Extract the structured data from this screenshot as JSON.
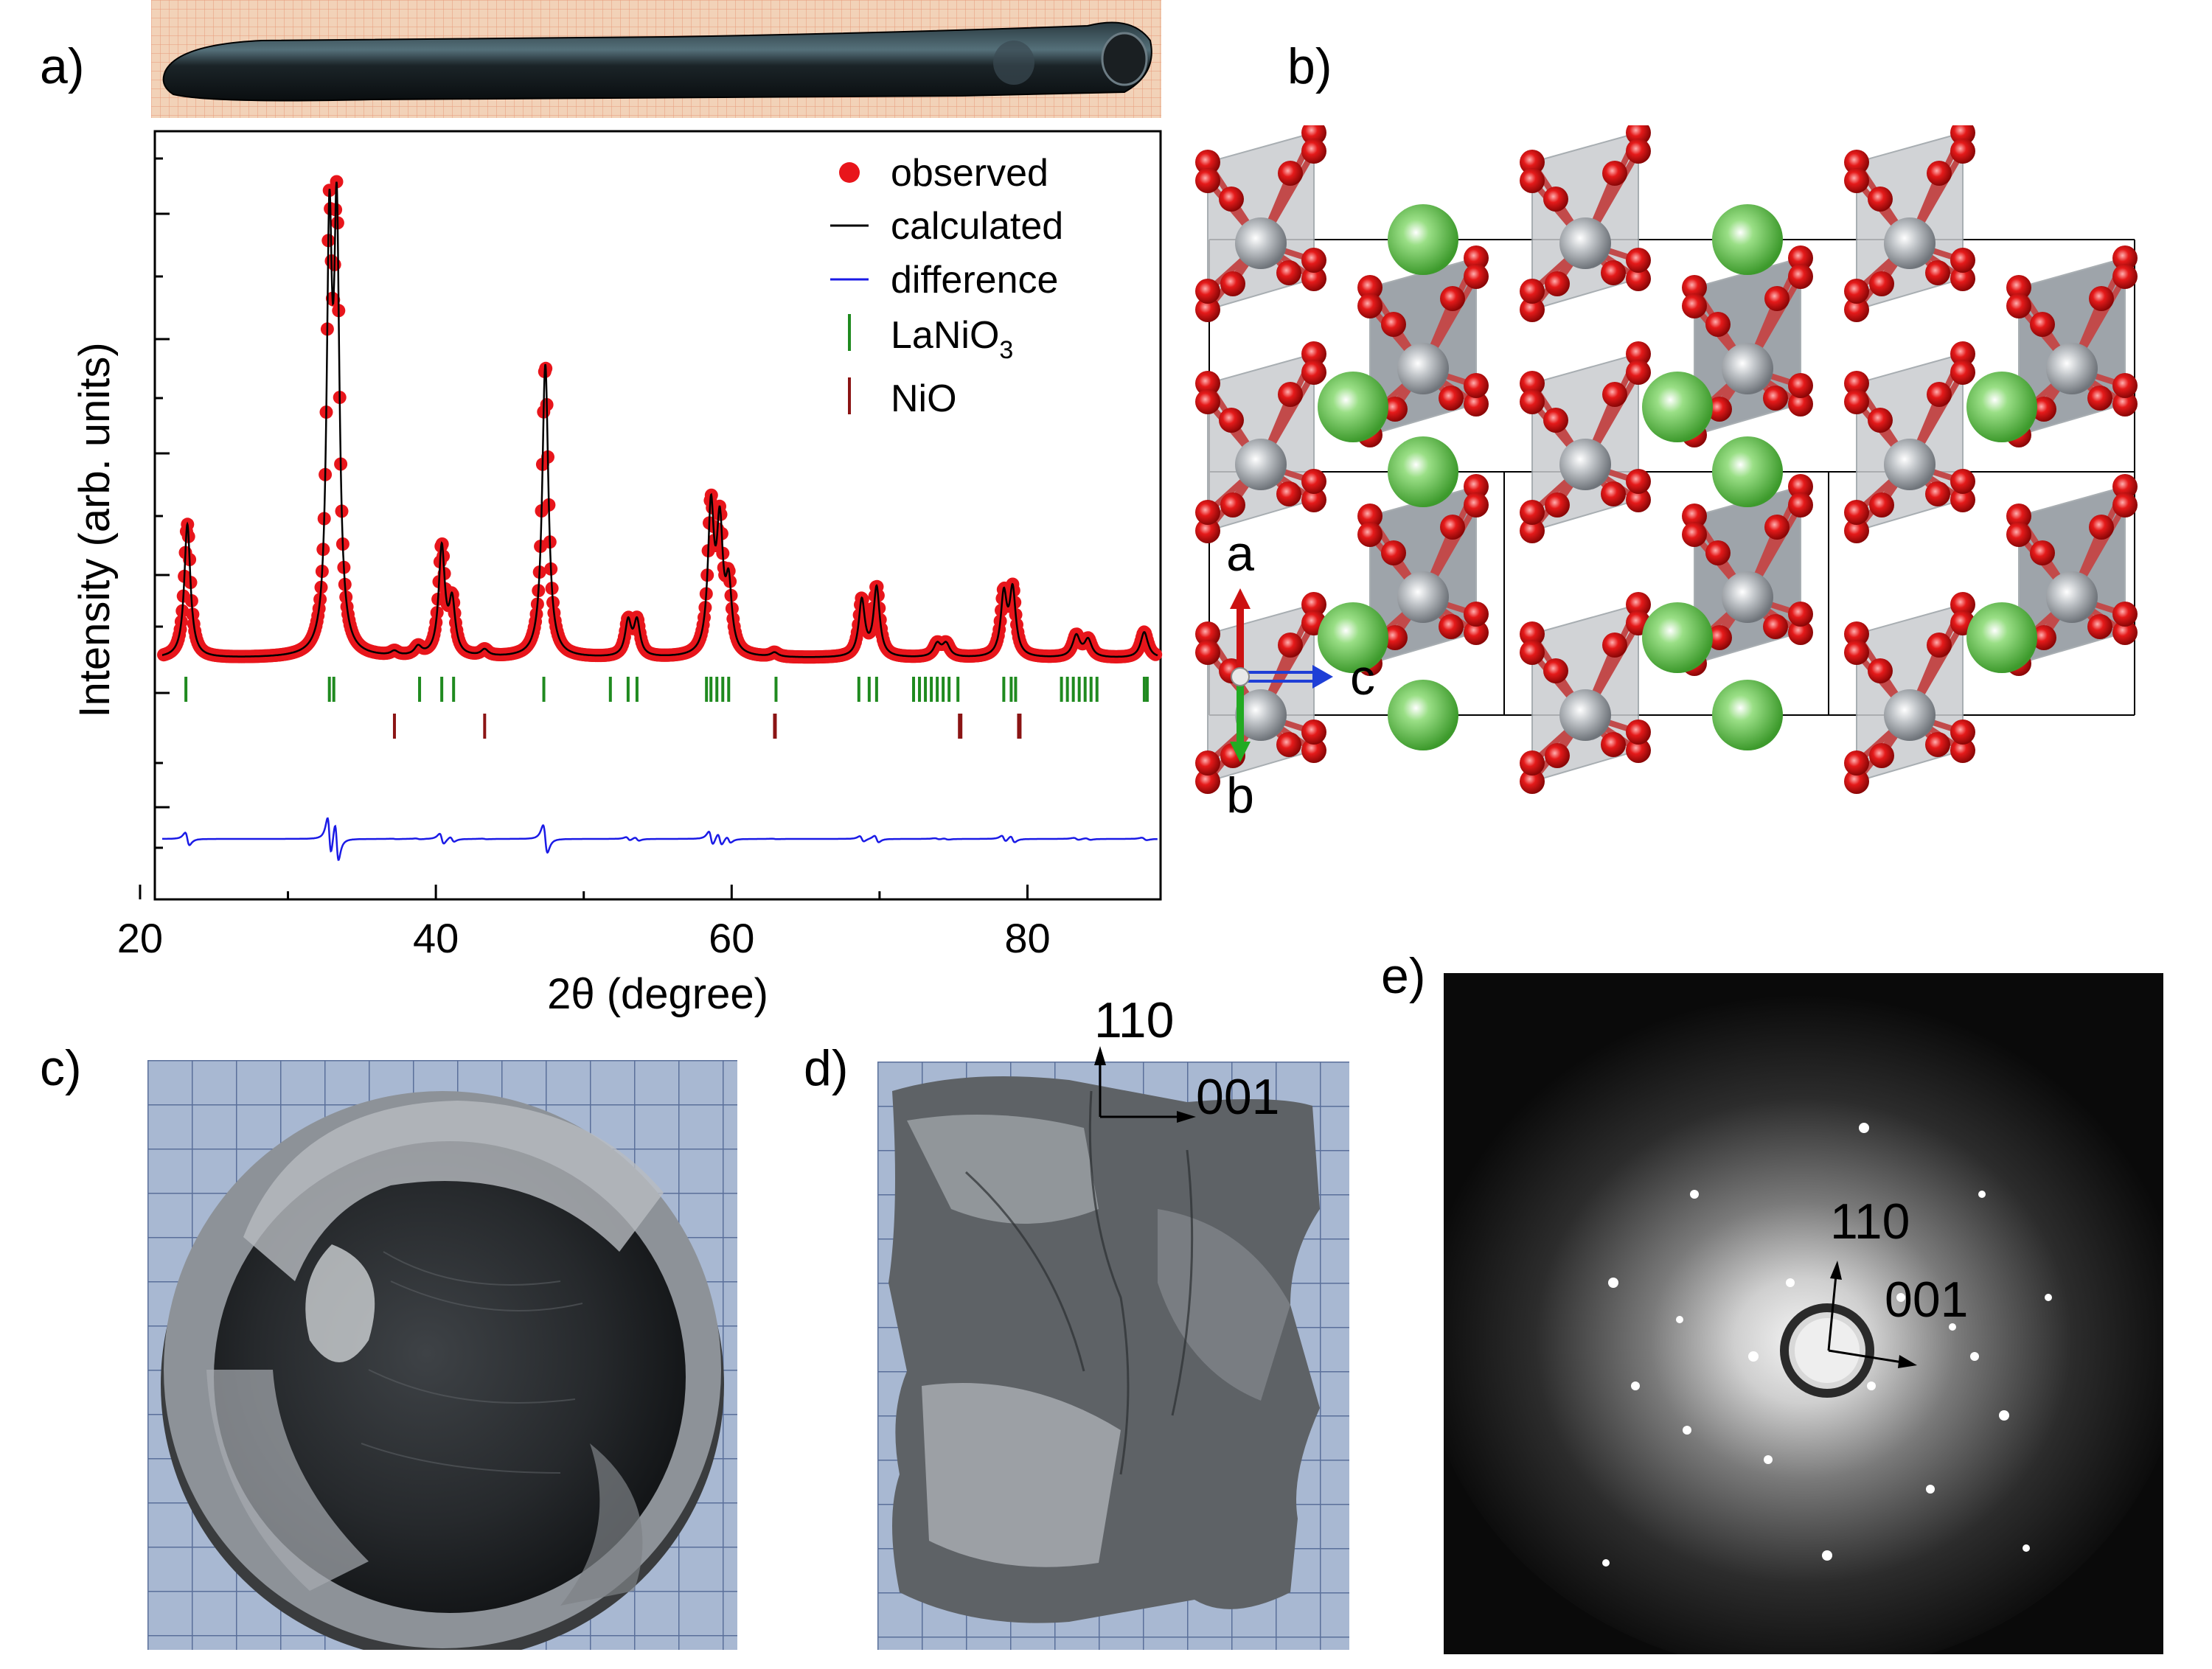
{
  "panels": {
    "a": "a)",
    "b": "b)",
    "c": "c)",
    "d": "d)",
    "e": "e)"
  },
  "axes_triad": {
    "a": "a",
    "b": "b",
    "c": "c"
  },
  "panel_d": {
    "dir1": "110",
    "dir2": "001"
  },
  "panel_e": {
    "dir1": "110",
    "dir2": "001"
  },
  "colors": {
    "observed": "#e8151b",
    "calculated": "#000000",
    "difference": "#1a1ae6",
    "lanio3": "#1f8a1f",
    "nio": "#8b1414",
    "la_atom": "#5fbf4a",
    "ni_atom": "#a9adb2",
    "o_atom": "#d81414"
  },
  "chart_data": {
    "type": "scatter",
    "xlabel": "2θ (degree)",
    "ylabel": "Intensity (arb. units)",
    "xlim": [
      21,
      89
    ],
    "xticks": [
      20,
      40,
      60,
      80
    ],
    "yticks_labeled": false,
    "legend_position": "top-right",
    "legend": [
      {
        "name": "observed",
        "style": "red dots"
      },
      {
        "name": "calculated",
        "style": "black line"
      },
      {
        "name": "difference",
        "style": "blue line"
      },
      {
        "name": "LaNiO",
        "sub": "3",
        "style": "green tick"
      },
      {
        "name": "NiO",
        "style": "dark red tick"
      }
    ],
    "peaks": [
      {
        "x": 23.2,
        "height": 0.31,
        "width": 0.25
      },
      {
        "x": 32.8,
        "height": 0.93,
        "width": 0.22
      },
      {
        "x": 33.3,
        "height": 0.95,
        "width": 0.22
      },
      {
        "x": 37.2,
        "height": 0.01,
        "width": 0.3
      },
      {
        "x": 38.8,
        "height": 0.02,
        "width": 0.3
      },
      {
        "x": 40.4,
        "height": 0.25,
        "width": 0.25
      },
      {
        "x": 41.1,
        "height": 0.12,
        "width": 0.25
      },
      {
        "x": 43.3,
        "height": 0.015,
        "width": 0.3
      },
      {
        "x": 47.4,
        "height": 0.68,
        "width": 0.25
      },
      {
        "x": 53.0,
        "height": 0.08,
        "width": 0.25
      },
      {
        "x": 53.6,
        "height": 0.08,
        "width": 0.25
      },
      {
        "x": 58.6,
        "height": 0.33,
        "width": 0.25
      },
      {
        "x": 59.2,
        "height": 0.28,
        "width": 0.25
      },
      {
        "x": 59.8,
        "height": 0.15,
        "width": 0.25
      },
      {
        "x": 62.9,
        "height": 0.01,
        "width": 0.3
      },
      {
        "x": 68.8,
        "height": 0.13,
        "width": 0.25
      },
      {
        "x": 69.8,
        "height": 0.16,
        "width": 0.25
      },
      {
        "x": 73.9,
        "height": 0.03,
        "width": 0.3
      },
      {
        "x": 74.5,
        "height": 0.03,
        "width": 0.3
      },
      {
        "x": 78.4,
        "height": 0.14,
        "width": 0.25
      },
      {
        "x": 79.0,
        "height": 0.15,
        "width": 0.25
      },
      {
        "x": 83.3,
        "height": 0.05,
        "width": 0.3
      },
      {
        "x": 84.1,
        "height": 0.04,
        "width": 0.3
      },
      {
        "x": 87.9,
        "height": 0.06,
        "width": 0.3
      }
    ],
    "lanio3_reflections": [
      23.1,
      32.8,
      33.1,
      38.9,
      40.4,
      41.2,
      47.3,
      51.8,
      53.0,
      53.6,
      58.3,
      58.6,
      59.0,
      59.4,
      59.8,
      63.0,
      68.6,
      69.3,
      69.8,
      72.3,
      72.7,
      73.1,
      73.5,
      73.9,
      74.3,
      74.7,
      75.3,
      78.4,
      78.9,
      79.2,
      82.3,
      82.7,
      83.1,
      83.5,
      83.9,
      84.3,
      84.7,
      87.9,
      88.1
    ],
    "nio_reflections": [
      37.2,
      43.3,
      62.9,
      62.95,
      75.4,
      75.5,
      79.4,
      79.5
    ]
  }
}
